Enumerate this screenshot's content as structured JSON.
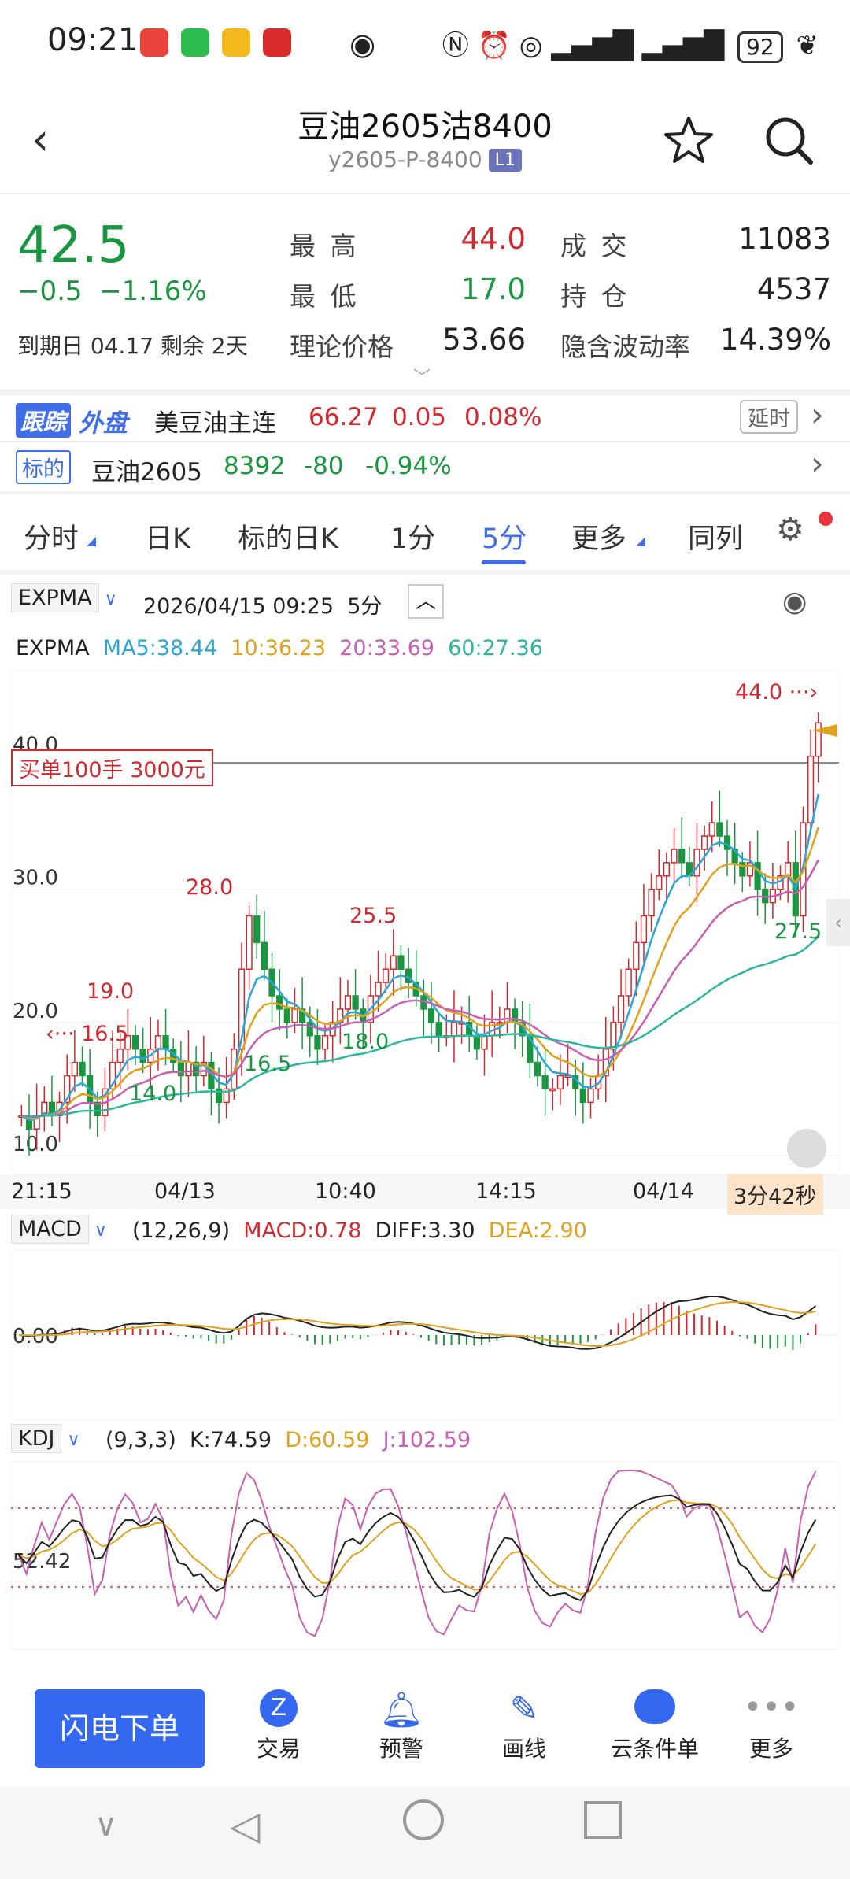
{
  "status_bar": {
    "time": "09:21",
    "battery": "92"
  },
  "header": {
    "title": "豆油2605沽8400",
    "subtitle": "y2605-P-8400",
    "level_badge": "L1"
  },
  "quote": {
    "price": "42.5",
    "change": "−0.5",
    "change_pct": "−1.16%",
    "expiry_label": "到期日",
    "expiry_date": "04.17",
    "remaining_label": "剩余",
    "remaining_days": "2天",
    "high_label": "最 高",
    "high": "44.0",
    "low_label": "最 低",
    "low": "17.0",
    "theory_label": "理论价格",
    "theory": "53.66",
    "volume_label": "成 交",
    "volume": "11083",
    "oi_label": "持 仓",
    "oi": "4537",
    "iv_label": "隐含波动率",
    "iv": "14.39%"
  },
  "external": {
    "badge_a": "跟踪",
    "badge_b": "外盘",
    "name": "美豆油主连",
    "price": "66.27",
    "change": "0.05",
    "pct": "0.08%",
    "delay": "延时"
  },
  "underlying": {
    "badge": "标的",
    "name": "豆油2605",
    "price": "8392",
    "change": "-80",
    "pct": "-0.94%"
  },
  "tabs": [
    "分时",
    "日K",
    "标的日K",
    "1分",
    "5分",
    "更多",
    "同列"
  ],
  "active_tab": "5分",
  "chart_header": {
    "indicator": "EXPMA",
    "datetime": "2026/04/15 09:25",
    "period": "5分"
  },
  "expma_line": {
    "name": "EXPMA",
    "ma5": "MA5:38.44",
    "ma10": "10:36.23",
    "ma20": "20:33.69",
    "ma60": "60:27.36"
  },
  "order_tag": "买单100手  3000元",
  "chart_labels": {
    "y_ticks": [
      "40.0",
      "30.0",
      "20.0",
      "10.0"
    ],
    "x_ticks": [
      "21:15",
      "04/13",
      "10:40",
      "14:15",
      "04/14"
    ],
    "countdown": "3分42秒",
    "annotations": [
      "44.0",
      "27.5",
      "28.0",
      "25.5",
      "19.0",
      "16.5",
      "14.0",
      "16.5",
      "18.0"
    ]
  },
  "macd": {
    "name": "MACD",
    "params": "(12,26,9)",
    "macd": "MACD:0.78",
    "diff": "DIFF:3.30",
    "dea": "DEA:2.90",
    "y_tick": "0.00"
  },
  "kdj": {
    "name": "KDJ",
    "params": "(9,3,3)",
    "k": "K:74.59",
    "d": "D:60.59",
    "j": "J:102.59",
    "y_tick": "52.42"
  },
  "bottom": {
    "flash": "闪电下单",
    "items": [
      "交易",
      "预警",
      "画线",
      "云条件单",
      "更多"
    ]
  },
  "chart_data": {
    "type": "candlestick",
    "ylim": [
      10,
      45
    ],
    "values": [
      13,
      12,
      13,
      14,
      13,
      14,
      16,
      17,
      16,
      14,
      13,
      15,
      17,
      18,
      19,
      18,
      17,
      18,
      19,
      18,
      17,
      16,
      17,
      16,
      17,
      15,
      14,
      15,
      18,
      24,
      28,
      26,
      24,
      22,
      21,
      20,
      21,
      20,
      19,
      18,
      19,
      20,
      21,
      22,
      21,
      20,
      22,
      23,
      24,
      25,
      24,
      23,
      22,
      21,
      20,
      19,
      19,
      20,
      20,
      19,
      18,
      19,
      20,
      20,
      21,
      20,
      19,
      17,
      16,
      15,
      15,
      16,
      16,
      15,
      14,
      15,
      16,
      18,
      20,
      22,
      24,
      26,
      28,
      30,
      31,
      32,
      33,
      32,
      31,
      33,
      34,
      35,
      34,
      33,
      32,
      31,
      32,
      30,
      29,
      30,
      31,
      32,
      28,
      35,
      40,
      42.5
    ]
  },
  "colors": {
    "up": "#d0282e",
    "down": "#1a9641",
    "accent": "#3f6ee8",
    "ma5": "#2aa6d6",
    "ma10": "#e0a21c",
    "ma20": "#c95fb4",
    "ma60": "#2ab6a0"
  }
}
